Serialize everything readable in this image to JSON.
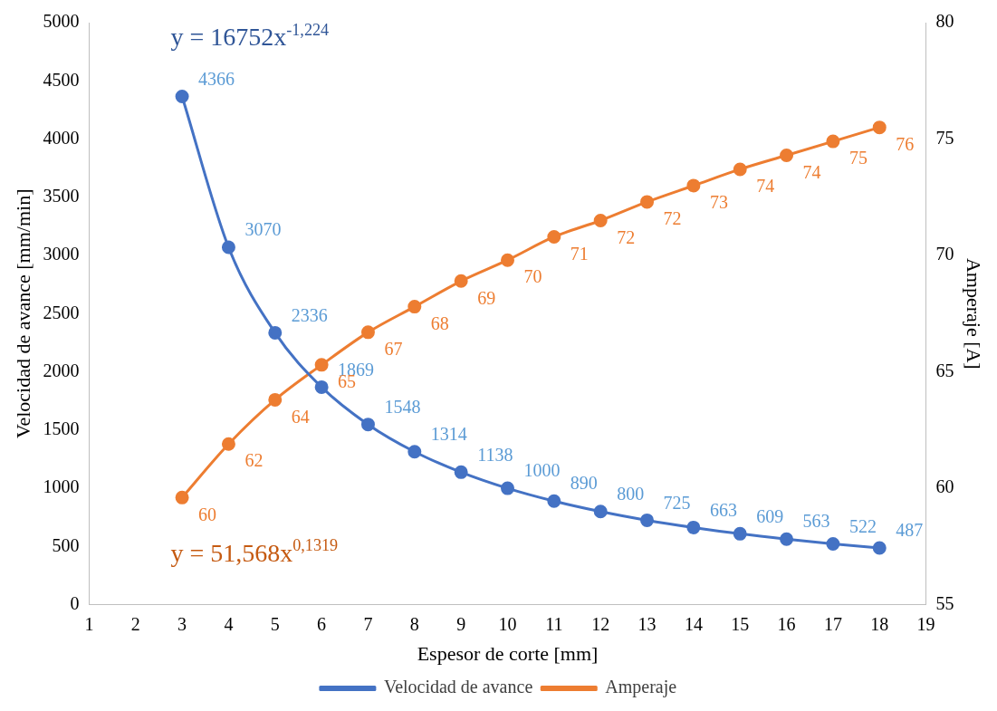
{
  "chart_data": {
    "type": "line",
    "xlabel": "Espesor de corte [mm]",
    "ylabel": "Velocidad de avance [mm/min]",
    "y2label": "Amperaje [A]",
    "x": [
      3,
      4,
      5,
      6,
      7,
      8,
      9,
      10,
      11,
      12,
      13,
      14,
      15,
      16,
      17,
      18
    ],
    "series": [
      {
        "name": "Velocidad de avance",
        "color": "#4472c4",
        "values": [
          4366,
          3070,
          2336,
          1869,
          1548,
          1314,
          1138,
          1000,
          890,
          800,
          725,
          663,
          609,
          563,
          522,
          487
        ],
        "value_labels": [
          "4366",
          "3070",
          "2336",
          "1869",
          "1548",
          "1314",
          "1138",
          "1000",
          "890",
          "800",
          "725",
          "663",
          "609",
          "563",
          "522",
          "487"
        ]
      },
      {
        "name": "Amperaje",
        "color": "#ed7d31",
        "axis": "y2",
        "values": [
          59.6,
          61.9,
          63.8,
          65.3,
          66.7,
          67.8,
          68.9,
          69.8,
          70.8,
          71.5,
          72.3,
          73.0,
          73.7,
          74.3,
          74.9,
          75.5
        ],
        "value_labels": [
          "60",
          "62",
          "64",
          "65",
          "67",
          "68",
          "69",
          "70",
          "71",
          "72",
          "72",
          "73",
          "74",
          "74",
          "75",
          "76"
        ]
      }
    ],
    "xlim": [
      1,
      19
    ],
    "xticks": [
      1,
      2,
      3,
      4,
      5,
      6,
      7,
      8,
      9,
      10,
      11,
      12,
      13,
      14,
      15,
      16,
      17,
      18,
      19
    ],
    "ylim": [
      0,
      5000
    ],
    "yticks": [
      0,
      500,
      1000,
      1500,
      2000,
      2500,
      3000,
      3500,
      4000,
      4500,
      5000
    ],
    "y2lim": [
      55,
      80
    ],
    "y2ticks": [
      55,
      60,
      65,
      70,
      75,
      80
    ],
    "annotations": [
      "y = 16752x$^{-1,224}$",
      "y = 51,568x$^{0,1319}$"
    ],
    "grid": false,
    "legend": "bottom",
    "marker": "circle",
    "line_style": "solid"
  }
}
